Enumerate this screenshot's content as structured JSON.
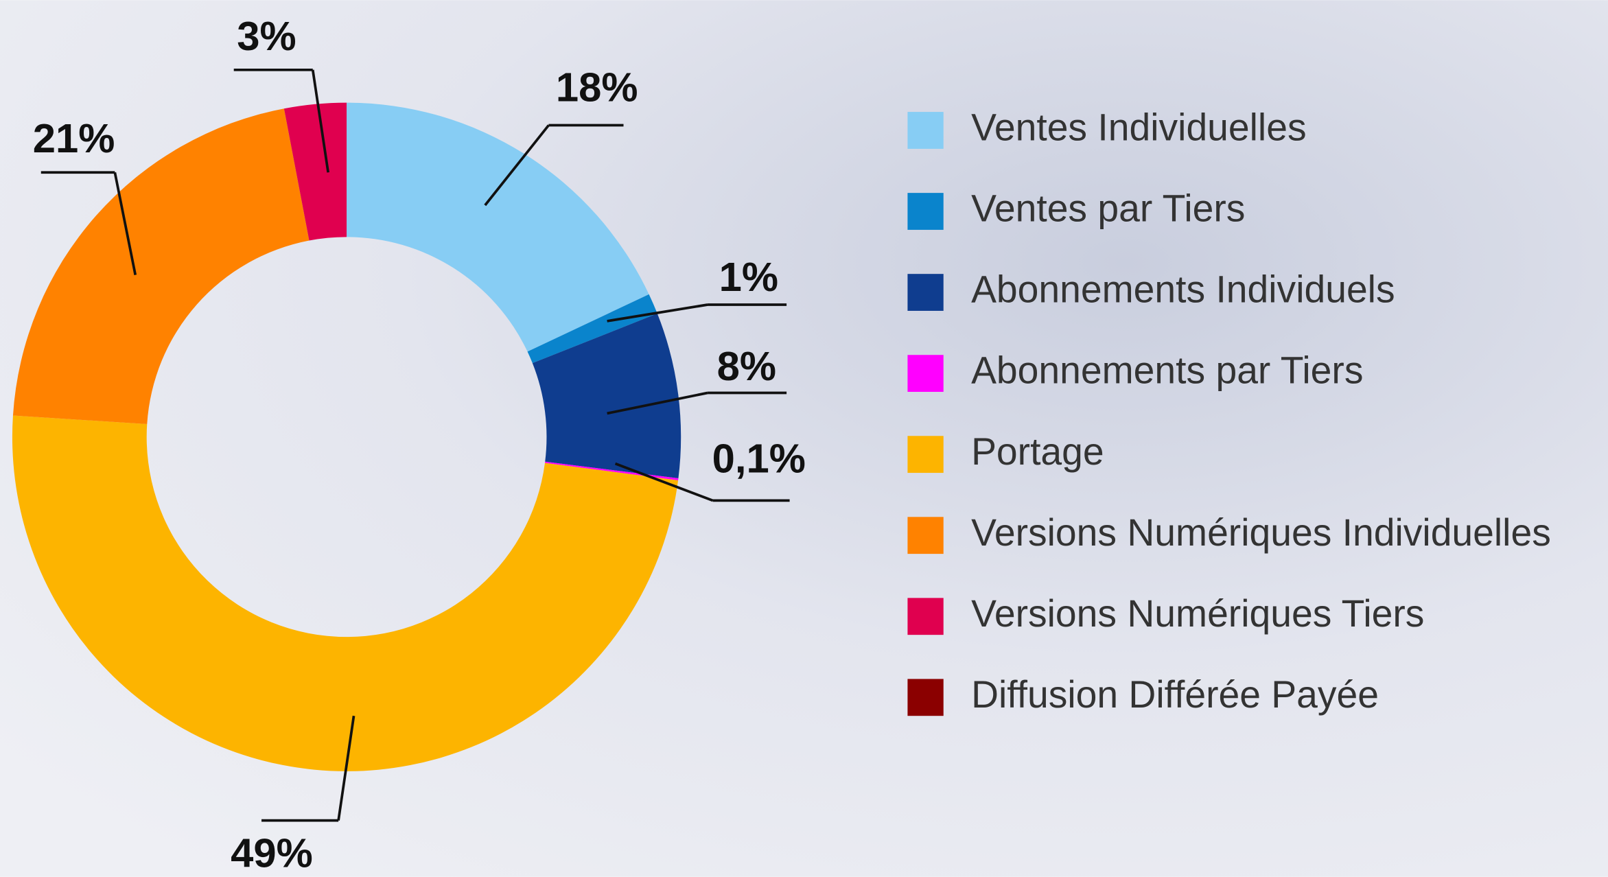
{
  "chart_data": {
    "type": "donut",
    "categories": [
      "Ventes Individuelles",
      "Ventes par Tiers",
      "Abonnements Individuels",
      "Abonnements par Tiers",
      "Portage",
      "Versions Numériques Individuelles",
      "Versions Numériques Tiers",
      "Diffusion Différée Payée"
    ],
    "values": [
      18,
      1,
      8,
      0.1,
      49,
      21,
      3,
      0
    ],
    "value_labels": [
      "18%",
      "1%",
      "8%",
      "0,1%",
      "49%",
      "21%",
      "3%",
      null
    ],
    "colors": [
      "#87cdf4",
      "#0a84cc",
      "#0f3d8f",
      "#ff00ff",
      "#fdb400",
      "#ff8200",
      "#e0004f",
      "#8b0000"
    ]
  }
}
